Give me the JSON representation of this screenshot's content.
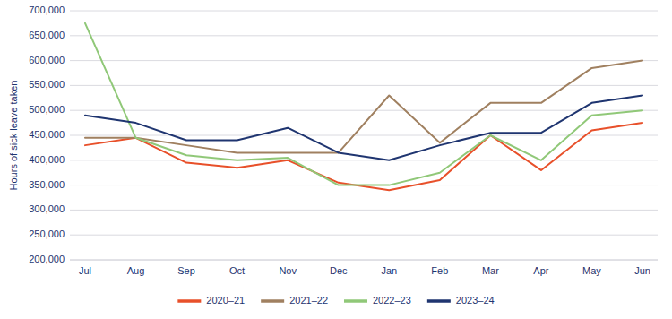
{
  "chart_data": {
    "type": "line",
    "ylabel": "Hours of sick leave taken",
    "categories": [
      "Jul",
      "Aug",
      "Sep",
      "Oct",
      "Nov",
      "Dec",
      "Jan",
      "Feb",
      "Mar",
      "Apr",
      "May",
      "Jun"
    ],
    "series": [
      {
        "name": "2020–21",
        "color": "#e8502a",
        "values": [
          430000,
          445000,
          395000,
          385000,
          400000,
          355000,
          340000,
          360000,
          450000,
          380000,
          460000,
          475000
        ]
      },
      {
        "name": "2021–22",
        "color": "#a08060",
        "values": [
          445000,
          445000,
          430000,
          415000,
          415000,
          415000,
          530000,
          435000,
          515000,
          515000,
          585000,
          600000
        ]
      },
      {
        "name": "2022–23",
        "color": "#90c878",
        "values": [
          675000,
          445000,
          410000,
          400000,
          405000,
          350000,
          350000,
          375000,
          450000,
          400000,
          490000,
          500000
        ]
      },
      {
        "name": "2023–24",
        "color": "#1f3570",
        "values": [
          490000,
          475000,
          440000,
          440000,
          465000,
          415000,
          400000,
          430000,
          455000,
          455000,
          515000,
          530000
        ]
      }
    ],
    "ylim": [
      200000,
      700000
    ],
    "yticks": [
      {
        "value": 200000,
        "label": "200,000"
      },
      {
        "value": 250000,
        "label": "250,000"
      },
      {
        "value": 300000,
        "label": "300,000"
      },
      {
        "value": 350000,
        "label": "350,000"
      },
      {
        "value": 400000,
        "label": "400,000"
      },
      {
        "value": 450000,
        "label": "450,000"
      },
      {
        "value": 500000,
        "label": "500,000"
      },
      {
        "value": 550000,
        "label": "550,000"
      },
      {
        "value": 600000,
        "label": "600,000"
      },
      {
        "value": 650000,
        "label": "650,000"
      },
      {
        "value": 700000,
        "label": "700,000"
      }
    ],
    "grid": true,
    "legend": "bottom"
  }
}
